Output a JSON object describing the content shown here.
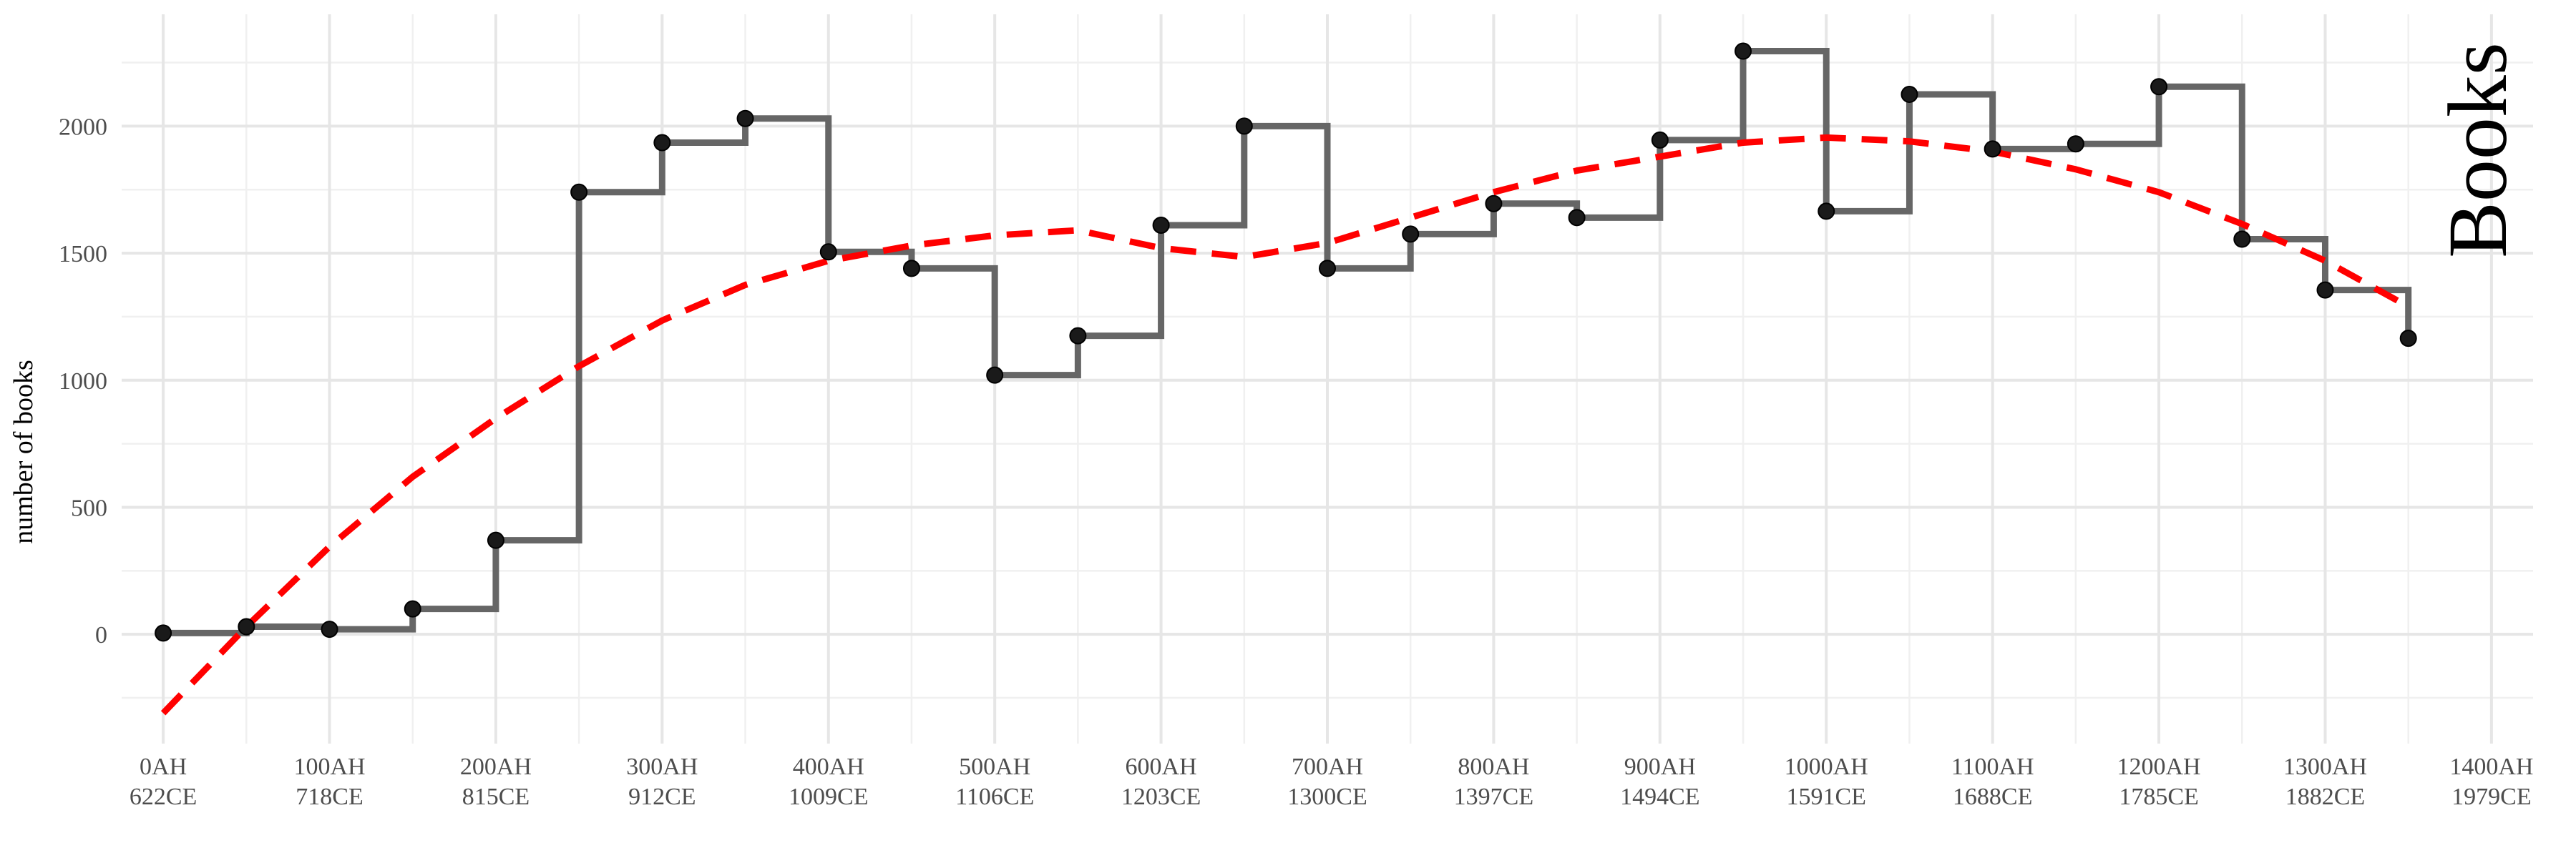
{
  "chart_data": {
    "type": "line",
    "title": "Books",
    "xlabel": "",
    "ylabel": "number of books",
    "xlim": [
      -25,
      1425
    ],
    "ylim": [
      -430,
      2440
    ],
    "grid": true,
    "legend": "none",
    "y_ticks": [
      0,
      500,
      1000,
      1500,
      2000
    ],
    "x_ticks": [
      {
        "value": 0,
        "line1": "0AH",
        "line2": "622CE"
      },
      {
        "value": 100,
        "line1": "100AH",
        "line2": "718CE"
      },
      {
        "value": 200,
        "line1": "200AH",
        "line2": "815CE"
      },
      {
        "value": 300,
        "line1": "300AH",
        "line2": "912CE"
      },
      {
        "value": 400,
        "line1": "400AH",
        "line2": "1009CE"
      },
      {
        "value": 500,
        "line1": "500AH",
        "line2": "1106CE"
      },
      {
        "value": 600,
        "line1": "600AH",
        "line2": "1203CE"
      },
      {
        "value": 700,
        "line1": "700AH",
        "line2": "1300CE"
      },
      {
        "value": 800,
        "line1": "800AH",
        "line2": "1397CE"
      },
      {
        "value": 900,
        "line1": "900AH",
        "line2": "1494CE"
      },
      {
        "value": 1000,
        "line1": "1000AH",
        "line2": "1591CE"
      },
      {
        "value": 1100,
        "line1": "1100AH",
        "line2": "1688CE"
      },
      {
        "value": 1200,
        "line1": "1200AH",
        "line2": "1785CE"
      },
      {
        "value": 1300,
        "line1": "1300AH",
        "line2": "1882CE"
      },
      {
        "value": 1400,
        "line1": "1400AH",
        "line2": "1979CE"
      }
    ],
    "series": [
      {
        "kind": "step",
        "x": [
          0,
          50,
          100,
          150,
          200,
          250,
          300,
          350,
          400,
          450,
          500,
          550,
          600,
          650,
          700,
          750,
          800,
          850,
          900,
          950,
          1000,
          1050,
          1100,
          1150,
          1200,
          1250,
          1300,
          1350
        ],
        "values": [
          5,
          30,
          20,
          100,
          370,
          1740,
          1935,
          2030,
          1505,
          1440,
          1020,
          1175,
          1610,
          2000,
          1440,
          1575,
          1695,
          1640,
          1945,
          2295,
          1665,
          2125,
          1910,
          1930,
          2155,
          1555,
          1355,
          1165
        ]
      },
      {
        "kind": "trend",
        "x": [
          0,
          25,
          50,
          100,
          150,
          200,
          250,
          300,
          350,
          400,
          450,
          500,
          550,
          600,
          650,
          700,
          750,
          800,
          850,
          900,
          950,
          1000,
          1050,
          1100,
          1150,
          1200,
          1250,
          1300,
          1350
        ],
        "values": [
          -310,
          -140,
          30,
          345,
          620,
          850,
          1055,
          1235,
          1375,
          1470,
          1530,
          1570,
          1590,
          1520,
          1485,
          1540,
          1640,
          1740,
          1825,
          1880,
          1935,
          1955,
          1940,
          1900,
          1830,
          1740,
          1615,
          1470,
          1290
        ]
      }
    ],
    "colors": {
      "step": "#666666",
      "points": "#1a1a1a",
      "trend": "#ff0000",
      "grid_major": "#e6e6e6",
      "grid_minor": "#f0f0f0"
    }
  }
}
